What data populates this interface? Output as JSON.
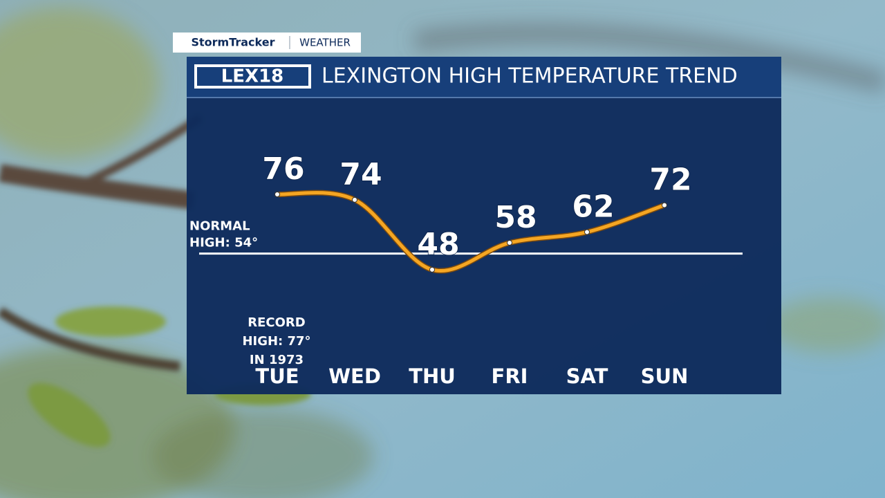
{
  "header": {
    "brand": "StormTracker",
    "section": "WEATHER",
    "logo": "LEX18"
  },
  "chart_data": {
    "type": "line",
    "title": "LEXINGTON HIGH TEMPERATURE TREND",
    "categories": [
      "TUE",
      "WED",
      "THU",
      "FRI",
      "SAT",
      "SUN"
    ],
    "series": [
      {
        "name": "High temperature",
        "color": "#f5a623",
        "values": [
          76,
          74,
          48,
          58,
          62,
          72
        ]
      }
    ],
    "ylim": [
      40,
      80
    ],
    "reference_line": {
      "value": 54,
      "label": [
        "NORMAL",
        "HIGH: 54°"
      ]
    },
    "annotation": [
      "RECORD",
      "HIGH: 77°",
      "IN 1973"
    ]
  }
}
